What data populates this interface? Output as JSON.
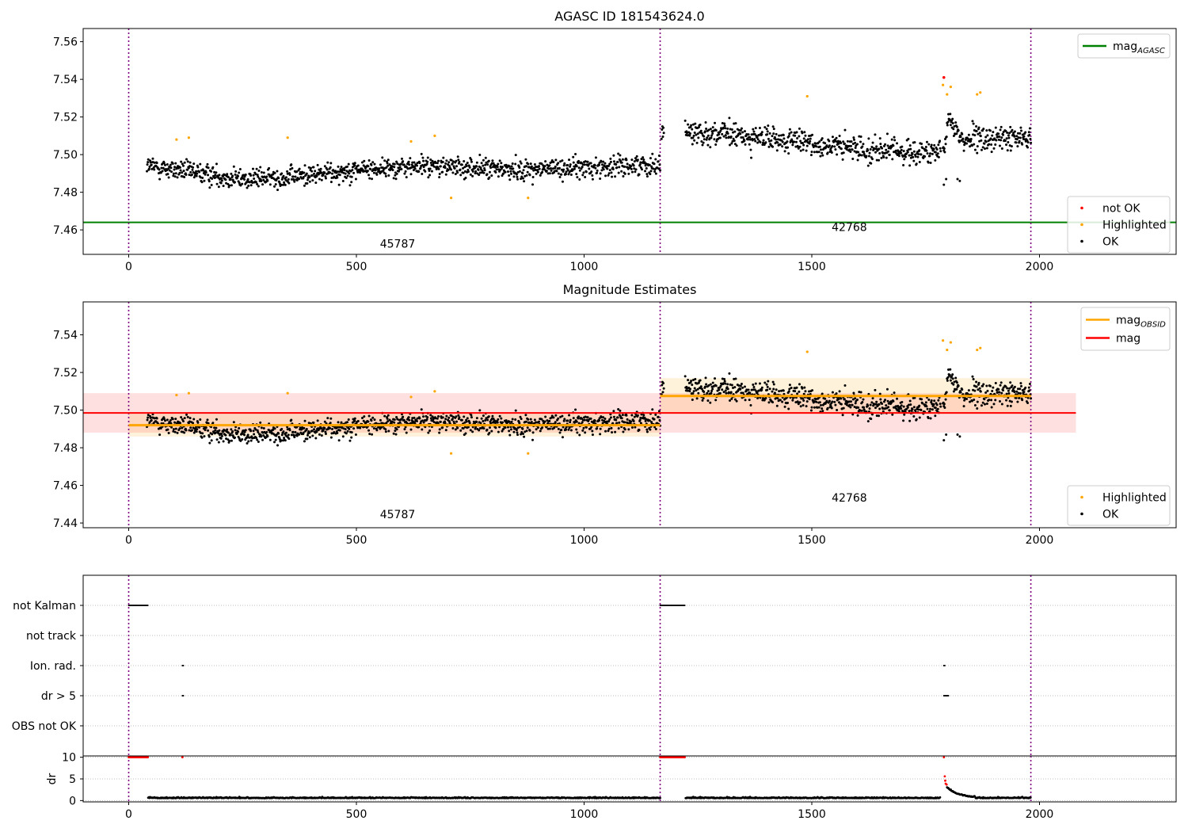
{
  "chart_data": [
    {
      "type": "scatter",
      "title": "AGASC ID 181543624.0",
      "xlim": [
        -100,
        2300
      ],
      "ylim": [
        7.447,
        7.567
      ],
      "xticks": [
        "0",
        "500",
        "1000",
        "1500",
        "2000"
      ],
      "xtick_values": [
        0,
        500,
        1000,
        1500,
        2000
      ],
      "yticks": [
        "7.46",
        "7.48",
        "7.50",
        "7.52",
        "7.54",
        "7.56"
      ],
      "ytick_values": [
        7.46,
        7.48,
        7.5,
        7.52,
        7.54,
        7.56
      ],
      "vlines": [
        0,
        1167,
        1981
      ],
      "hline": {
        "label": "mag",
        "label_sub": "AGASC",
        "y": 7.464,
        "color": "#008000"
      },
      "obsid_labels": [
        {
          "text": "45787",
          "x": 583,
          "y": 7.4505
        },
        {
          "text": "42768",
          "x": 1575,
          "y": 7.4595
        }
      ],
      "legend_top": [
        {
          "label": "mag",
          "label_sub": "AGASC",
          "color": "#008000",
          "kind": "line"
        }
      ],
      "legend_bottom": [
        {
          "label": "not OK",
          "color": "#ff0000",
          "kind": "dot"
        },
        {
          "label": "Highlighted",
          "color": "#ffa500",
          "kind": "dot"
        },
        {
          "label": "OK",
          "color": "#000000",
          "kind": "dot"
        }
      ],
      "segments": [
        {
          "x0": 40,
          "x1": 1167,
          "base": [
            [
              40,
              7.494
            ],
            [
              250,
              7.487
            ],
            [
              350,
              7.488
            ],
            [
              500,
              7.492
            ],
            [
              650,
              7.494
            ],
            [
              850,
              7.492
            ],
            [
              1000,
              7.493
            ],
            [
              1167,
              7.495
            ]
          ],
          "spread": 0.0045
        },
        {
          "x0": 1170,
          "x1": 1981,
          "base": [
            [
              1170,
              7.513
            ],
            [
              1300,
              7.511
            ],
            [
              1450,
              7.507
            ],
            [
              1600,
              7.503
            ],
            [
              1750,
              7.501
            ],
            [
              1790,
              7.5
            ],
            [
              1800,
              7.52
            ],
            [
              1830,
              7.508
            ],
            [
              1981,
              7.509
            ]
          ],
          "spread": 0.0055
        }
      ],
      "highlighted": [
        [
          105,
          7.508
        ],
        [
          132,
          7.509
        ],
        [
          349,
          7.509
        ],
        [
          620,
          7.507
        ],
        [
          672,
          7.51
        ],
        [
          708,
          7.477
        ],
        [
          877,
          7.477
        ],
        [
          1490,
          7.531
        ],
        [
          1788,
          7.537
        ],
        [
          1797,
          7.532
        ],
        [
          1805,
          7.536
        ],
        [
          1863,
          7.532
        ],
        [
          1870,
          7.533
        ]
      ],
      "not_ok": [
        [
          1790,
          7.541
        ]
      ],
      "ok_gaps": [
        [
          1790,
          7.484
        ],
        [
          1795,
          7.487
        ],
        [
          1820,
          7.487
        ],
        [
          1825,
          7.486
        ]
      ]
    },
    {
      "type": "scatter",
      "title": "Magnitude Estimates",
      "xlim": [
        -100,
        2300
      ],
      "ylim": [
        7.4375,
        7.5575
      ],
      "xticks": [
        "0",
        "500",
        "1000",
        "1500",
        "2000"
      ],
      "xtick_values": [
        0,
        500,
        1000,
        1500,
        2000
      ],
      "yticks": [
        "7.44",
        "7.46",
        "7.48",
        "7.50",
        "7.52",
        "7.54"
      ],
      "ytick_values": [
        7.44,
        7.46,
        7.48,
        7.5,
        7.52,
        7.54
      ],
      "vlines": [
        0,
        1167,
        1981
      ],
      "mag_line": {
        "label": "mag",
        "y": 7.4985,
        "x0": -100,
        "x1": 2080,
        "band": [
          7.488,
          7.509
        ],
        "color": "#ff0000"
      },
      "obsid_mag": [
        {
          "x0": 0,
          "x1": 1167,
          "y": 7.492,
          "band": [
            7.486,
            7.498
          ]
        },
        {
          "x0": 1167,
          "x1": 1981,
          "y": 7.5075,
          "band": [
            7.498,
            7.517
          ]
        }
      ],
      "obsid_labels": [
        {
          "text": "45787",
          "x": 583,
          "y": 7.4425
        },
        {
          "text": "42768",
          "x": 1575,
          "y": 7.4515
        }
      ],
      "legend_top": [
        {
          "label": "mag",
          "label_sub": "OBSID",
          "color": "#ffa500",
          "kind": "line"
        },
        {
          "label": "mag",
          "label_sub": "",
          "color": "#ff0000",
          "kind": "line"
        }
      ],
      "legend_bottom": [
        {
          "label": "Highlighted",
          "color": "#ffa500",
          "kind": "dot"
        },
        {
          "label": "OK",
          "color": "#000000",
          "kind": "dot"
        }
      ]
    },
    {
      "type": "scatter",
      "title": "",
      "xlim": [
        -100,
        2300
      ],
      "flag_labels": [
        "not Kalman",
        "not track",
        "Ion. rad.",
        "dr > 5",
        "OBS not OK"
      ],
      "flag_points": {
        "not Kalman": [
          [
            0,
            42
          ],
          [
            1167,
            1222
          ]
        ],
        "not track": [],
        "Ion. rad.": [
          [
            118,
            120
          ],
          [
            1790,
            1792
          ]
        ],
        "dr > 5": [
          [
            118,
            120
          ],
          [
            1790,
            1800
          ]
        ],
        "OBS not OK": []
      },
      "dr_ylabel": "dr",
      "dr_yticks": [
        "0",
        "5",
        "10"
      ],
      "dr_ytick_values": [
        0,
        5,
        10
      ],
      "dr_ylim": [
        -0.3,
        10.3
      ],
      "dr_red_ranges": [
        [
          0,
          42
        ],
        [
          1167,
          1222
        ]
      ],
      "dr_red_singles": [
        [
          118,
          10
        ],
        [
          1790,
          10
        ],
        [
          1792,
          5.6
        ],
        [
          1793,
          4.6
        ],
        [
          1794,
          3.9
        ],
        [
          1796,
          3.7
        ]
      ],
      "dr_gaps": [
        [
          0,
          42
        ],
        [
          1167,
          1222
        ],
        [
          1981,
          2300
        ]
      ],
      "xticks": [
        "0",
        "500",
        "1000",
        "1500",
        "2000"
      ],
      "xtick_values": [
        0,
        500,
        1000,
        1500,
        2000
      ],
      "vlines": [
        0,
        1167,
        1981
      ]
    }
  ]
}
